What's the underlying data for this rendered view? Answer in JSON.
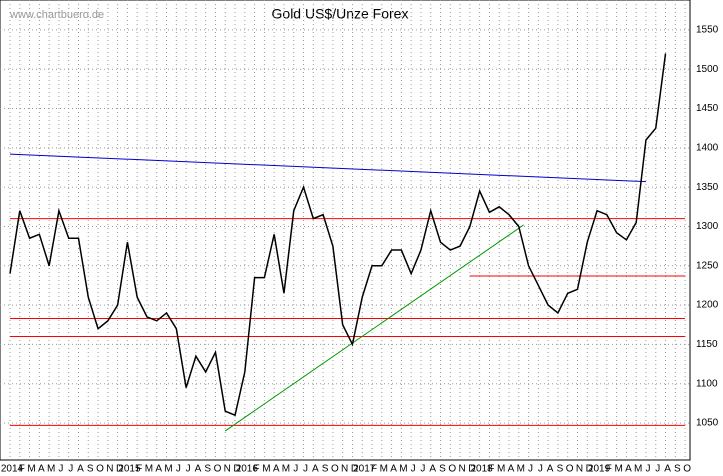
{
  "chart_data": {
    "type": "line",
    "title": "Gold US$/Unze Forex",
    "watermark": "www.chartbuero.de",
    "categories": [
      "2014",
      "F",
      "M",
      "A",
      "M",
      "J",
      "J",
      "A",
      "S",
      "O",
      "N",
      "D",
      "2015",
      "F",
      "M",
      "A",
      "M",
      "J",
      "J",
      "A",
      "S",
      "O",
      "N",
      "D",
      "2016",
      "F",
      "M",
      "A",
      "M",
      "J",
      "J",
      "A",
      "S",
      "O",
      "N",
      "D",
      "2017",
      "F",
      "M",
      "A",
      "M",
      "J",
      "J",
      "A",
      "S",
      "O",
      "N",
      "D",
      "2018",
      "F",
      "M",
      "A",
      "M",
      "J",
      "J",
      "A",
      "S",
      "O",
      "N",
      "D",
      "2019",
      "F",
      "M",
      "A",
      "M",
      "J",
      "J",
      "A",
      "S",
      "O"
    ],
    "series": [
      {
        "name": "Gold",
        "color": "#000000",
        "values": [
          1240,
          1320,
          1285,
          1290,
          1250,
          1320,
          1285,
          1285,
          1210,
          1170,
          1180,
          1200,
          1280,
          1210,
          1185,
          1180,
          1190,
          1170,
          1095,
          1135,
          1115,
          1140,
          1065,
          1060,
          1115,
          1235,
          1235,
          1290,
          1215,
          1320,
          1350,
          1310,
          1315,
          1275,
          1175,
          1150,
          1210,
          1250,
          1250,
          1270,
          1270,
          1240,
          1270,
          1320,
          1280,
          1270,
          1275,
          1300,
          1345,
          1318,
          1325,
          1315,
          1300,
          1250,
          1225,
          1200,
          1190,
          1215,
          1220,
          1280,
          1320,
          1315,
          1292,
          1283,
          1305,
          1410,
          1425,
          1520,
          null,
          null
        ]
      }
    ],
    "ylim": [
      1003,
      1588
    ],
    "yticks": [
      1050,
      1100,
      1150,
      1200,
      1250,
      1300,
      1350,
      1400,
      1450,
      1500,
      1550
    ],
    "grid": true,
    "support_lines": [
      {
        "color": "#ff0000",
        "x": [
          0,
          69
        ],
        "values": [
          1310,
          1310
        ]
      },
      {
        "color": "#ff0000",
        "x": [
          0,
          69
        ],
        "values": [
          1183,
          1183
        ]
      },
      {
        "color": "#ff0000",
        "x": [
          0,
          69
        ],
        "values": [
          1160,
          1160
        ]
      },
      {
        "color": "#ff0000",
        "x": [
          0,
          69
        ],
        "values": [
          1047,
          1047
        ]
      },
      {
        "color": "#ff0000",
        "x": [
          47,
          69
        ],
        "values": [
          1237,
          1237
        ]
      },
      {
        "color": "#0000cc",
        "x": [
          0,
          65
        ],
        "values": [
          1392,
          1357
        ]
      },
      {
        "color": "#009900",
        "x": [
          22,
          52.5
        ],
        "values": [
          1040,
          1302
        ]
      }
    ]
  }
}
